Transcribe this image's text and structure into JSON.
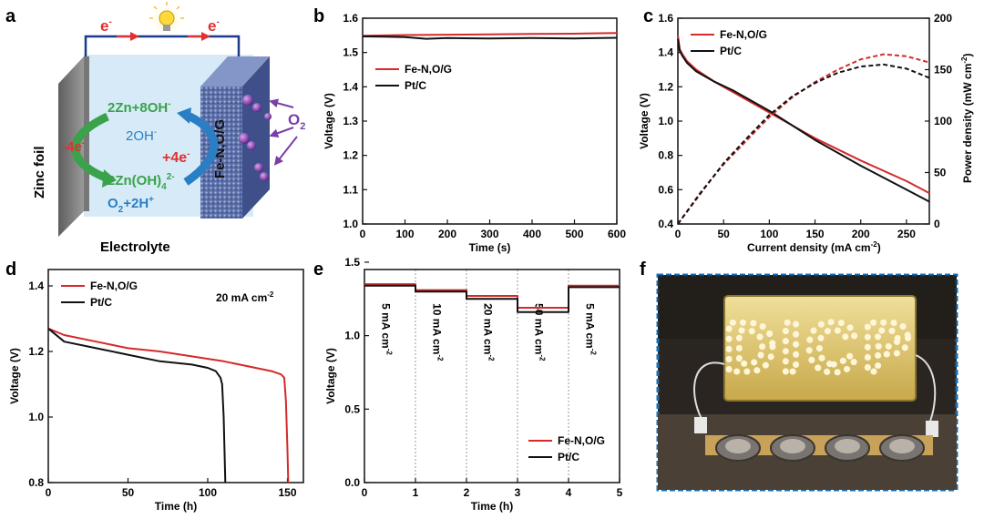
{
  "panel_labels": {
    "a": "a",
    "b": "b",
    "c": "c",
    "d": "d",
    "e": "e",
    "f": "f"
  },
  "schematic": {
    "electron_left": "e",
    "electron_right": "e",
    "electron_sup": "-",
    "zinc_label": "Zinc foil",
    "cathode_label": "Fe-N,O/G",
    "electrolyte_label": "Electrolyte",
    "anode_reaction_1": "2Zn+8OH",
    "anode_reaction_1_sup": "-",
    "anode_electrons": "-4e",
    "anode_electrons_sup": "-",
    "anode_reaction_2a": "2Zn(OH)",
    "anode_reaction_2_sub": "4",
    "anode_reaction_2_sup": "2-",
    "hydroxide": "2OH",
    "hydroxide_sup": "-",
    "cathode_electrons": "+4e",
    "cathode_electrons_sup": "-",
    "cathode_reaction_a": "O",
    "cathode_reaction_sub": "2",
    "cathode_reaction_b": "+2H",
    "cathode_reaction_sup": "+",
    "oxygen_label": "O",
    "oxygen_sub": "2"
  },
  "photo": {
    "sign_text": "DICP",
    "colors": {
      "border": "#1a6fb5",
      "background": "#2a2520",
      "panel": "#d9c46a",
      "led": "#fff6d8"
    }
  },
  "colors": {
    "red": "#d42a2a",
    "black": "#111111",
    "green": "#3aa24a",
    "blue": "#2a7fc4",
    "electron_red": "#e03030",
    "wire": "#1a3a8c"
  },
  "chart_data": [
    {
      "id": "b",
      "type": "line",
      "title": "",
      "xlabel": "Time (s)",
      "ylabel": "Voltage (V)",
      "xlim": [
        0,
        600
      ],
      "ylim": [
        1.0,
        1.6
      ],
      "xticks": [
        "0",
        "100",
        "200",
        "300",
        "400",
        "500",
        "600"
      ],
      "yticks": [
        "1.0",
        "1.1",
        "1.2",
        "1.3",
        "1.4",
        "1.5",
        "1.6"
      ],
      "legend": "top-left",
      "series": [
        {
          "name": "Fe-N,O/G",
          "color": "red",
          "x": [
            0,
            100,
            200,
            300,
            400,
            500,
            600
          ],
          "y": [
            1.549,
            1.551,
            1.552,
            1.553,
            1.554,
            1.555,
            1.557
          ]
        },
        {
          "name": "Pt/C",
          "color": "black",
          "x": [
            0,
            50,
            100,
            150,
            200,
            300,
            400,
            500,
            600
          ],
          "y": [
            1.547,
            1.546,
            1.545,
            1.54,
            1.542,
            1.541,
            1.542,
            1.541,
            1.543
          ]
        }
      ]
    },
    {
      "id": "c",
      "type": "line",
      "title": "",
      "xlabel": "Current density (mA cm",
      "xlabel_sup": "-2",
      "xlabel_end": ")",
      "ylabel": "Voltage (V)",
      "y2label": "Power density (mW cm",
      "y2label_sup": "-2",
      "y2label_end": ")",
      "xlim": [
        0,
        275
      ],
      "ylim": [
        0.4,
        1.6
      ],
      "y2lim": [
        0,
        200
      ],
      "xticks": [
        "0",
        "50",
        "100",
        "150",
        "200",
        "250"
      ],
      "yticks": [
        "0.4",
        "0.6",
        "0.8",
        "1.0",
        "1.2",
        "1.4",
        "1.6"
      ],
      "y2ticks": [
        "0",
        "50",
        "100",
        "150",
        "200"
      ],
      "legend": "top-left",
      "series": [
        {
          "name": "Fe-N,O/G",
          "color": "red",
          "x": [
            0,
            2,
            5,
            10,
            20,
            40,
            60,
            100,
            150,
            200,
            250,
            275
          ],
          "y": [
            1.5,
            1.42,
            1.39,
            1.35,
            1.3,
            1.23,
            1.17,
            1.05,
            0.9,
            0.77,
            0.65,
            0.58
          ]
        },
        {
          "name": "Pt/C",
          "color": "black",
          "x": [
            0,
            2,
            5,
            10,
            20,
            40,
            60,
            100,
            150,
            200,
            250,
            275
          ],
          "y": [
            1.48,
            1.41,
            1.38,
            1.34,
            1.29,
            1.23,
            1.18,
            1.06,
            0.89,
            0.74,
            0.6,
            0.53
          ]
        },
        {
          "name": "Fe-N,O/G power",
          "color": "red",
          "dashed": true,
          "axis": "y2",
          "x": [
            0,
            25,
            50,
            75,
            100,
            125,
            150,
            175,
            200,
            225,
            250,
            275
          ],
          "y": [
            0,
            31,
            58,
            81,
            104,
            123,
            138,
            150,
            160,
            165,
            163,
            157
          ]
        },
        {
          "name": "Pt/C power",
          "color": "black",
          "dashed": true,
          "axis": "y2",
          "x": [
            0,
            25,
            50,
            75,
            100,
            125,
            150,
            175,
            200,
            225,
            250,
            275
          ],
          "y": [
            0,
            30,
            59,
            83,
            106,
            124,
            137,
            147,
            153,
            155,
            151,
            142
          ]
        }
      ]
    },
    {
      "id": "d",
      "type": "line",
      "title": "",
      "annotation": "20 mA cm",
      "annotation_sup": "-2",
      "xlabel": "Time (h)",
      "ylabel": "Voltage (V)",
      "xlim": [
        0,
        160
      ],
      "ylim": [
        0.8,
        1.45
      ],
      "xticks": [
        "0",
        "50",
        "100",
        "150"
      ],
      "yticks": [
        "0.8",
        "1.0",
        "1.2",
        "1.4"
      ],
      "legend": "top-left",
      "series": [
        {
          "name": "Fe-N,O/G",
          "color": "red",
          "x": [
            0,
            10,
            30,
            50,
            70,
            90,
            110,
            130,
            140,
            146,
            148,
            149,
            150,
            150.5
          ],
          "y": [
            1.27,
            1.25,
            1.23,
            1.21,
            1.2,
            1.185,
            1.17,
            1.15,
            1.14,
            1.13,
            1.12,
            1.05,
            0.9,
            0.8
          ]
        },
        {
          "name": "Pt/C",
          "color": "black",
          "x": [
            0,
            10,
            30,
            50,
            70,
            90,
            100,
            105,
            108,
            109,
            110,
            110.5,
            111
          ],
          "y": [
            1.27,
            1.23,
            1.21,
            1.19,
            1.17,
            1.16,
            1.15,
            1.14,
            1.12,
            1.1,
            1.0,
            0.9,
            0.8
          ]
        }
      ]
    },
    {
      "id": "e",
      "type": "line",
      "title": "",
      "xlabel": "Time (h)",
      "ylabel": "Voltage (V)",
      "xlim": [
        0,
        5
      ],
      "ylim": [
        0.0,
        1.45
      ],
      "xticks": [
        "0",
        "1",
        "2",
        "3",
        "4",
        "5"
      ],
      "yticks": [
        "0.0",
        "0.5",
        "1.0",
        "1.5"
      ],
      "legend": "bottom-right",
      "segments": [
        {
          "label": "5 mA cm",
          "sup": "-2"
        },
        {
          "label": "10 mA cm",
          "sup": "-2"
        },
        {
          "label": "20 mA cm",
          "sup": "-2"
        },
        {
          "label": "50 mA cm",
          "sup": "-2"
        },
        {
          "label": "5 mA cm",
          "sup": "-2"
        }
      ],
      "series": [
        {
          "name": "Fe-N,O/G",
          "color": "red",
          "x": [
            0,
            1,
            1,
            2,
            2,
            3,
            3,
            4,
            4,
            5
          ],
          "y": [
            1.35,
            1.35,
            1.31,
            1.31,
            1.27,
            1.27,
            1.19,
            1.19,
            1.34,
            1.34
          ]
        },
        {
          "name": "Pt/C",
          "color": "black",
          "x": [
            0,
            1,
            1,
            2,
            2,
            3,
            3,
            4,
            4,
            5
          ],
          "y": [
            1.34,
            1.34,
            1.3,
            1.3,
            1.25,
            1.25,
            1.16,
            1.16,
            1.33,
            1.33
          ]
        }
      ]
    }
  ]
}
